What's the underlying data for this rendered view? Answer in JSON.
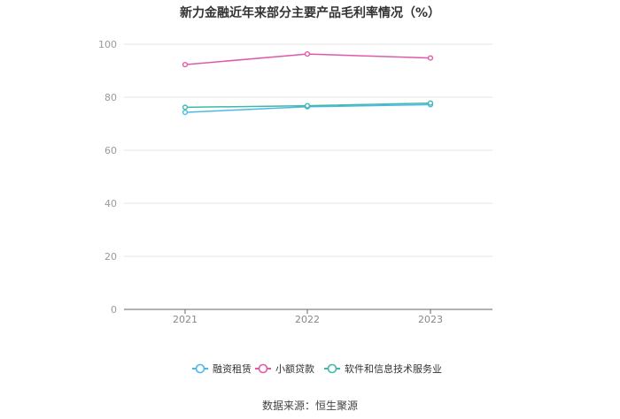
{
  "chart_data": {
    "type": "line",
    "title": "新力金融近年来部分主要产品毛利率情况（%）",
    "x": [
      "2021",
      "2022",
      "2023"
    ],
    "ylim": [
      0,
      100
    ],
    "yticks": [
      0,
      20,
      40,
      60,
      80,
      100
    ],
    "grid": true,
    "legend_position": "bottom",
    "series": [
      {
        "name": "融资租赁",
        "color": "#4db8e8",
        "values": [
          74.3,
          76.4,
          77.2
        ]
      },
      {
        "name": "小额贷款",
        "color": "#e05aa8",
        "values": [
          92.3,
          96.3,
          94.8
        ]
      },
      {
        "name": "软件和信息技术服务业",
        "color": "#3fb8a8",
        "values": [
          76.2,
          76.8,
          77.8
        ]
      }
    ]
  },
  "source_text": "数据来源：恒生聚源"
}
